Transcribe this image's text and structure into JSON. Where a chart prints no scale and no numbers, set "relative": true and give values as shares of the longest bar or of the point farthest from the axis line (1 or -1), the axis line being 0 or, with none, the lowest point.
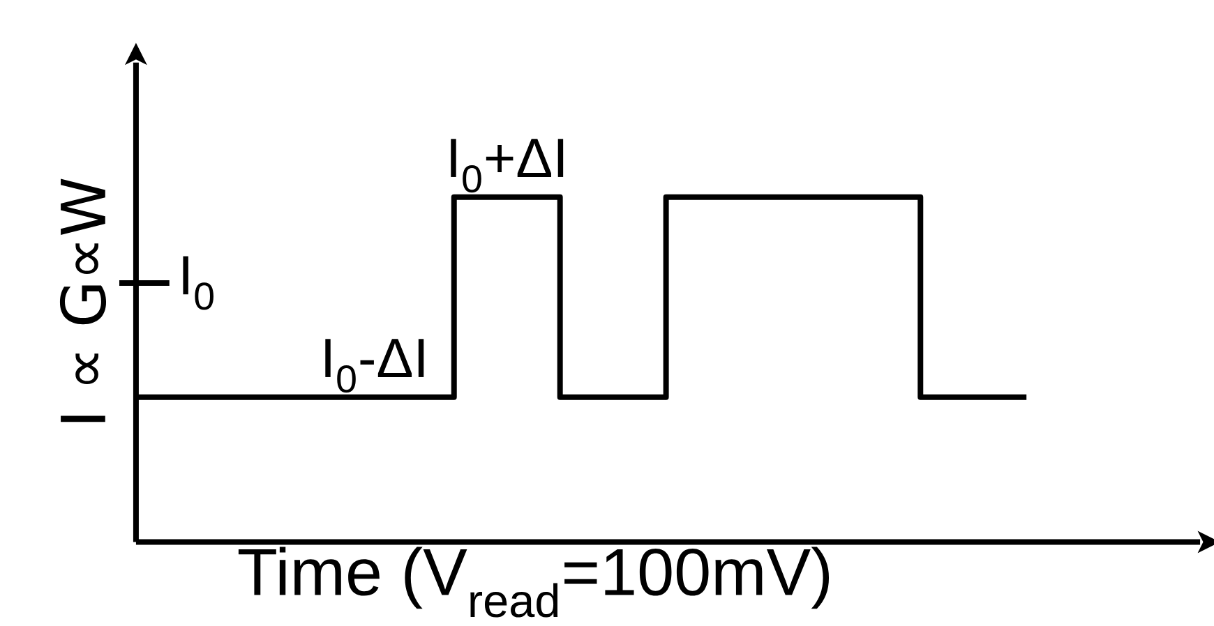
{
  "chart_data": {
    "type": "step",
    "relative": true,
    "xlabel": "Time (V$_{read}$=100mV)",
    "ylabel": "I ∝ G∝W",
    "color": "#000000",
    "marker": "none",
    "line_style": "solid",
    "categories": [
      null,
      null,
      null,
      null,
      null,
      null,
      null,
      null,
      null,
      null,
      null,
      null,
      null,
      null,
      null,
      null,
      null,
      null,
      null,
      null,
      null,
      null,
      null,
      null,
      null,
      null,
      null,
      null,
      null,
      null,
      null,
      null,
      null,
      null,
      null,
      null,
      null,
      null,
      null,
      null,
      null,
      null,
      null
    ],
    "values": [
      0.42,
      0.42,
      0.42,
      0.42,
      0.42,
      0.42,
      0.42,
      0.42,
      0.42,
      0.42,
      0.42,
      0.42,
      0.42,
      0.42,
      0.42,
      1,
      1,
      1,
      1,
      1,
      0.42,
      0.42,
      0.42,
      0.42,
      0.42,
      1,
      1,
      1,
      1,
      1,
      1,
      1,
      1,
      1,
      1,
      1,
      1,
      0.42,
      0.42,
      0.42,
      0.42,
      0.42,
      0.42
    ],
    "annotations": [
      "I$_{0}$",
      "I$_{0}$+ΔI",
      "I$_{0}$-ΔI"
    ]
  }
}
